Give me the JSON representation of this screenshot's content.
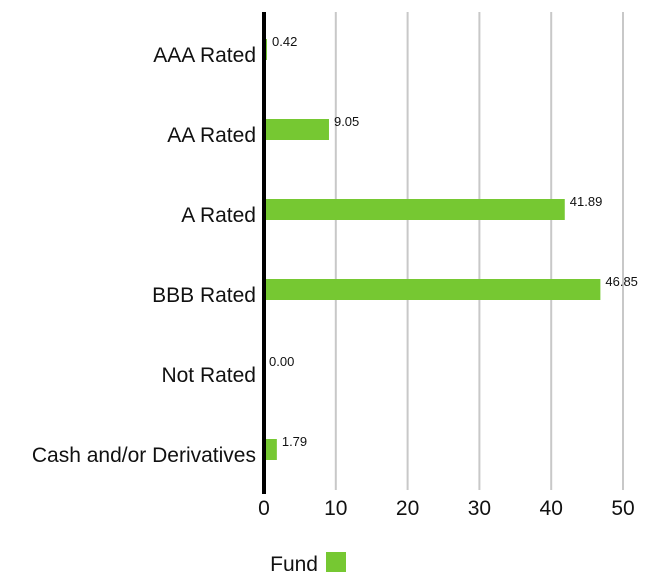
{
  "chart_data": {
    "type": "bar",
    "orientation": "horizontal",
    "categories": [
      "AAA Rated",
      "AA Rated",
      "A Rated",
      "BBB Rated",
      "Not Rated",
      "Cash and/or Derivatives"
    ],
    "series": [
      {
        "name": "Fund",
        "values": [
          0.42,
          9.05,
          41.89,
          46.85,
          0.0,
          1.79
        ],
        "value_labels": [
          "0.42",
          "9.05",
          "41.89",
          "46.85",
          "0.00",
          "1.79"
        ],
        "color": "#76c832"
      }
    ],
    "x_ticks": [
      "0",
      "10",
      "20",
      "30",
      "40",
      "50"
    ],
    "xlim": [
      0,
      50
    ],
    "grid": true,
    "legend_position": "bottom"
  }
}
